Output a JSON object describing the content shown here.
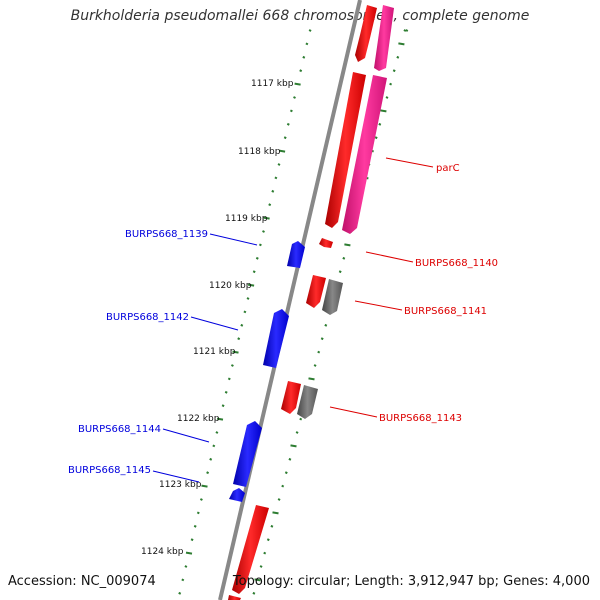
{
  "title": "Burkholderia pseudomallei 668 chromosome I, complete genome",
  "accession_label": "Accession: NC_009074",
  "summary_label": "Topology: circular; Length: 3,912,947 bp; Genes: 4,000",
  "colors": {
    "backbone": "#888888",
    "tick": "#2e7d32",
    "forward_gene": "#0000dd",
    "reverse_gene": "#ee0000",
    "pseudo_gene": "#666666",
    "highlight_gene": "#ff1493"
  },
  "scale_ticks": [
    "1117 kbp",
    "1118 kbp",
    "1119 kbp",
    "1120 kbp",
    "1121 kbp",
    "1122 kbp",
    "1123 kbp",
    "1124 kbp"
  ],
  "gene_labels": {
    "parC": "parC",
    "g1139": "BURPS668_1139",
    "g1140": "BURPS668_1140",
    "g1141": "BURPS668_1141",
    "g1142": "BURPS668_1142",
    "g1143": "BURPS668_1143",
    "g1144": "BURPS668_1144",
    "g1145": "BURPS668_1145"
  }
}
